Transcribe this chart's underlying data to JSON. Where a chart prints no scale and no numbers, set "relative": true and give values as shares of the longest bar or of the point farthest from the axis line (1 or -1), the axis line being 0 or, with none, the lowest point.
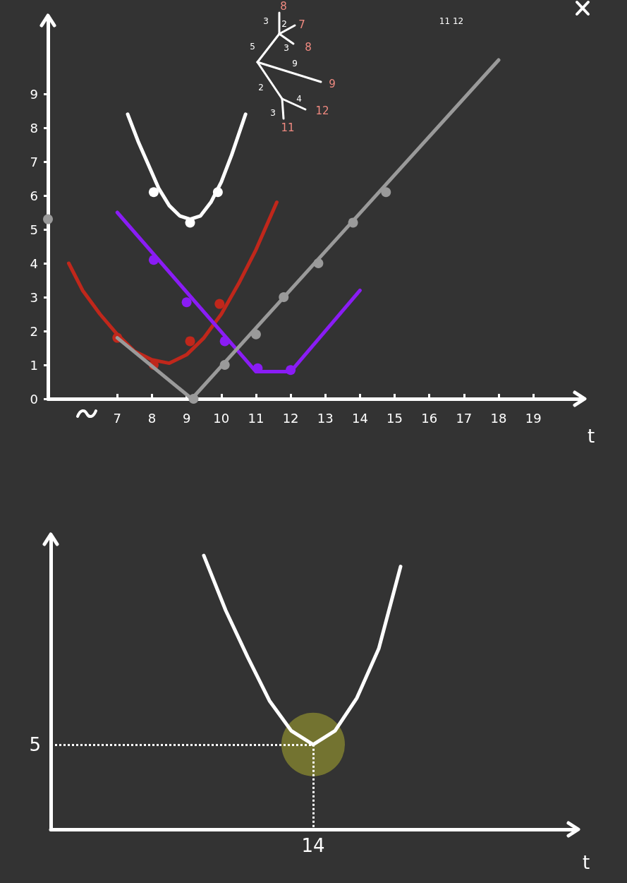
{
  "chart_data": [
    {
      "type": "line",
      "xlabel": "t",
      "xlim": [
        5,
        20.4
      ],
      "xticks": [
        7,
        8,
        9,
        10,
        11,
        12,
        13,
        14,
        15,
        16,
        17,
        18,
        19
      ],
      "ylim": [
        0,
        11.25
      ],
      "yticks": [
        0,
        1,
        2,
        3,
        4,
        5,
        6,
        7,
        8,
        9
      ],
      "grid": false,
      "marker": "none",
      "line_style": "solid",
      "series": [
        {
          "type": "line",
          "color": "#ffffff",
          "x": [
            7.3,
            7.6,
            7.9,
            8.2,
            8.5,
            8.8,
            9.1,
            9.4,
            9.7,
            10.0,
            10.3,
            10.7
          ],
          "values": [
            8.4,
            7.6,
            6.9,
            6.2,
            5.7,
            5.4,
            5.3,
            5.4,
            5.8,
            6.4,
            7.2,
            8.4
          ]
        },
        {
          "type": "scatter",
          "marker": "circle",
          "color": "#ffffff",
          "x": [
            8.05,
            9.1,
            9.9
          ],
          "values": [
            6.1,
            5.2,
            6.1
          ]
        },
        {
          "type": "line",
          "color": "#c0271b",
          "x": [
            5.6,
            6.0,
            6.5,
            7.0,
            7.5,
            8.0,
            8.5,
            9.0,
            9.5,
            10.0,
            10.5,
            11.0,
            11.6
          ],
          "values": [
            4.0,
            3.2,
            2.5,
            1.9,
            1.4,
            1.15,
            1.05,
            1.3,
            1.8,
            2.5,
            3.4,
            4.4,
            5.8
          ]
        },
        {
          "type": "scatter",
          "marker": "circle",
          "color": "#c0271b",
          "x": [
            7.0,
            8.05,
            9.1,
            9.95
          ],
          "values": [
            1.8,
            1.0,
            1.7,
            2.8
          ]
        },
        {
          "type": "line",
          "color": "#8a1cf5",
          "x": [
            7.0,
            11.0,
            12.0,
            14.0
          ],
          "values": [
            5.5,
            0.8,
            0.8,
            3.2
          ]
        },
        {
          "type": "scatter",
          "marker": "circle",
          "color": "#8a1cf5",
          "x": [
            8.05,
            9.0,
            10.1,
            11.05,
            12.0
          ],
          "values": [
            4.1,
            2.85,
            1.7,
            0.9,
            0.85
          ]
        },
        {
          "type": "line",
          "color": "#9a9a9a",
          "x": [
            7.0,
            9.15,
            18.0
          ],
          "values": [
            1.8,
            0,
            10.0
          ]
        },
        {
          "type": "scatter",
          "marker": "circle",
          "color": "#9a9a9a",
          "x": [
            5.0,
            9.2,
            10.1,
            11.0,
            11.8,
            12.8,
            13.8,
            14.75
          ],
          "values": [
            5.3,
            0,
            1.0,
            1.9,
            3.0,
            4.0,
            5.2,
            6.1
          ]
        }
      ],
      "annotations": [
        "8",
        "3",
        "2",
        "7",
        "3",
        "8",
        "5",
        "9",
        "9",
        "2",
        "4",
        "12",
        "3",
        "11",
        "11 12"
      ]
    },
    {
      "type": "line",
      "relative": true,
      "xlabel": "t",
      "categories": [
        null,
        null,
        null,
        null,
        null,
        null,
        null,
        null,
        null,
        null,
        null,
        null,
        null,
        null,
        null,
        null,
        null,
        null,
        null,
        null,
        null,
        null,
        null,
        null,
        null
      ],
      "grid": false,
      "marker": "none",
      "line_style": "solid",
      "series": [
        {
          "type": "line",
          "color": "#ffffff",
          "values": [
            null,
            null,
            null,
            null,
            null,
            null,
            null,
            1.0,
            0.8,
            0.63,
            0.47,
            0.36,
            0.31,
            0.36,
            0.48,
            0.66,
            0.96,
            null,
            null,
            null,
            null,
            null,
            null,
            null,
            null
          ]
        }
      ],
      "annotations": [
        "5",
        "14"
      ]
    }
  ]
}
